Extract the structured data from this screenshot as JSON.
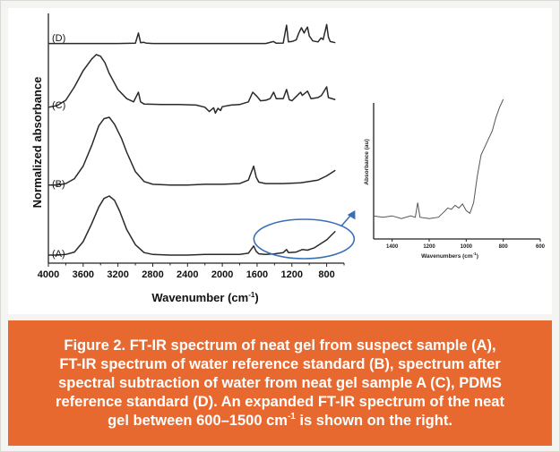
{
  "chart_data": [
    {
      "type": "line",
      "title": "",
      "xlabel": "Wavenumber (cm",
      "xlabel_sup": "-1",
      "xlabel_end": ")",
      "ylabel": "Normalized absorbance",
      "x_reversed": true,
      "xlim": [
        4000,
        600
      ],
      "x_ticks": [
        4000,
        3600,
        3200,
        2800,
        2400,
        2000,
        1600,
        1200,
        800
      ],
      "x_tick_labels": [
        "4000",
        "3600",
        "3200",
        "2800",
        "2400",
        "2000",
        "1600",
        "1200",
        "800"
      ],
      "series": [
        {
          "name": "(A)",
          "points": [
            [
              4000,
              0.03
            ],
            [
              3900,
              0.03
            ],
            [
              3800,
              0.04
            ],
            [
              3700,
              0.08
            ],
            [
              3600,
              0.25
            ],
            [
              3500,
              0.55
            ],
            [
              3420,
              0.82
            ],
            [
              3360,
              0.96
            ],
            [
              3300,
              1.0
            ],
            [
              3240,
              0.93
            ],
            [
              3180,
              0.75
            ],
            [
              3100,
              0.45
            ],
            [
              3000,
              0.2
            ],
            [
              2900,
              0.07
            ],
            [
              2800,
              0.04
            ],
            [
              2600,
              0.03
            ],
            [
              2400,
              0.03
            ],
            [
              2200,
              0.04
            ],
            [
              2000,
              0.04
            ],
            [
              1800,
              0.04
            ],
            [
              1700,
              0.06
            ],
            [
              1640,
              0.18
            ],
            [
              1610,
              0.09
            ],
            [
              1580,
              0.05
            ],
            [
              1500,
              0.04
            ],
            [
              1400,
              0.05
            ],
            [
              1300,
              0.07
            ],
            [
              1261,
              0.12
            ],
            [
              1240,
              0.07
            ],
            [
              1150,
              0.08
            ],
            [
              1080,
              0.12
            ],
            [
              1020,
              0.11
            ],
            [
              940,
              0.15
            ],
            [
              800,
              0.28
            ],
            [
              700,
              0.42
            ]
          ]
        },
        {
          "name": "(B)",
          "points": [
            [
              4000,
              0.03
            ],
            [
              3900,
              0.03
            ],
            [
              3800,
              0.05
            ],
            [
              3700,
              0.12
            ],
            [
              3600,
              0.3
            ],
            [
              3500,
              0.6
            ],
            [
              3420,
              0.88
            ],
            [
              3360,
              0.98
            ],
            [
              3300,
              1.0
            ],
            [
              3240,
              0.9
            ],
            [
              3160,
              0.7
            ],
            [
              3100,
              0.5
            ],
            [
              3000,
              0.22
            ],
            [
              2900,
              0.08
            ],
            [
              2800,
              0.04
            ],
            [
              2600,
              0.03
            ],
            [
              2400,
              0.03
            ],
            [
              2200,
              0.04
            ],
            [
              2000,
              0.04
            ],
            [
              1800,
              0.05
            ],
            [
              1700,
              0.1
            ],
            [
              1640,
              0.3
            ],
            [
              1610,
              0.14
            ],
            [
              1580,
              0.07
            ],
            [
              1500,
              0.05
            ],
            [
              1300,
              0.05
            ],
            [
              1100,
              0.06
            ],
            [
              900,
              0.1
            ],
            [
              800,
              0.16
            ],
            [
              700,
              0.24
            ]
          ]
        },
        {
          "name": "(C)",
          "points": [
            [
              4000,
              0.02
            ],
            [
              3900,
              0.05
            ],
            [
              3800,
              0.15
            ],
            [
              3700,
              0.4
            ],
            [
              3600,
              0.7
            ],
            [
              3500,
              0.92
            ],
            [
              3450,
              1.0
            ],
            [
              3400,
              0.97
            ],
            [
              3350,
              0.85
            ],
            [
              3300,
              0.65
            ],
            [
              3200,
              0.35
            ],
            [
              3100,
              0.18
            ],
            [
              3020,
              0.12
            ],
            [
              2965,
              0.3
            ],
            [
              2940,
              0.12
            ],
            [
              2900,
              0.08
            ],
            [
              2700,
              0.07
            ],
            [
              2500,
              0.07
            ],
            [
              2300,
              0.06
            ],
            [
              2200,
              0.02
            ],
            [
              2150,
              -0.06
            ],
            [
              2100,
              0.01
            ],
            [
              2080,
              -0.09
            ],
            [
              2050,
              0.0
            ],
            [
              2020,
              -0.04
            ],
            [
              2000,
              0.03
            ],
            [
              1900,
              0.06
            ],
            [
              1800,
              0.07
            ],
            [
              1700,
              0.12
            ],
            [
              1650,
              0.3
            ],
            [
              1600,
              0.22
            ],
            [
              1560,
              0.14
            ],
            [
              1500,
              0.15
            ],
            [
              1450,
              0.18
            ],
            [
              1410,
              0.3
            ],
            [
              1380,
              0.18
            ],
            [
              1300,
              0.18
            ],
            [
              1261,
              0.35
            ],
            [
              1230,
              0.16
            ],
            [
              1200,
              0.14
            ],
            [
              1150,
              0.22
            ],
            [
              1100,
              0.3
            ],
            [
              1080,
              0.24
            ],
            [
              1020,
              0.32
            ],
            [
              980,
              0.18
            ],
            [
              900,
              0.2
            ],
            [
              860,
              0.24
            ],
            [
              800,
              0.4
            ],
            [
              780,
              0.2
            ],
            [
              700,
              0.16
            ]
          ]
        },
        {
          "name": "(D)",
          "points": [
            [
              4000,
              0.02
            ],
            [
              3800,
              0.02
            ],
            [
              3600,
              0.02
            ],
            [
              3400,
              0.02
            ],
            [
              3200,
              0.02
            ],
            [
              3000,
              0.03
            ],
            [
              2965,
              0.55
            ],
            [
              2940,
              0.06
            ],
            [
              2905,
              0.08
            ],
            [
              2880,
              0.04
            ],
            [
              2800,
              0.02
            ],
            [
              2400,
              0.02
            ],
            [
              2000,
              0.02
            ],
            [
              1800,
              0.02
            ],
            [
              1600,
              0.02
            ],
            [
              1500,
              0.02
            ],
            [
              1412,
              0.12
            ],
            [
              1380,
              0.03
            ],
            [
              1300,
              0.04
            ],
            [
              1261,
              0.95
            ],
            [
              1240,
              0.1
            ],
            [
              1200,
              0.12
            ],
            [
              1150,
              0.2
            ],
            [
              1120,
              0.55
            ],
            [
              1090,
              0.82
            ],
            [
              1060,
              0.55
            ],
            [
              1040,
              0.72
            ],
            [
              1020,
              0.85
            ],
            [
              1000,
              0.4
            ],
            [
              960,
              0.15
            ],
            [
              900,
              0.1
            ],
            [
              865,
              0.3
            ],
            [
              840,
              0.22
            ],
            [
              800,
              0.98
            ],
            [
              780,
              0.35
            ],
            [
              760,
              0.12
            ],
            [
              700,
              0.06
            ]
          ]
        }
      ]
    },
    {
      "type": "line",
      "title": "",
      "xlabel": "Wavenumbers (cm",
      "xlabel_sup": "-1",
      "xlabel_end": ")",
      "ylabel": "Absorbance (au)",
      "x_reversed": true,
      "xlim": [
        1500,
        600
      ],
      "x_ticks": [
        1400,
        1200,
        1000,
        800,
        600
      ],
      "x_tick_labels": [
        "1400",
        "1200",
        "1000",
        "800",
        "600"
      ],
      "series": [
        {
          "name": "",
          "points": [
            [
              1500,
              0.12
            ],
            [
              1450,
              0.11
            ],
            [
              1400,
              0.12
            ],
            [
              1350,
              0.1
            ],
            [
              1300,
              0.12
            ],
            [
              1275,
              0.11
            ],
            [
              1262,
              0.22
            ],
            [
              1250,
              0.11
            ],
            [
              1200,
              0.1
            ],
            [
              1150,
              0.11
            ],
            [
              1120,
              0.15
            ],
            [
              1100,
              0.18
            ],
            [
              1080,
              0.17
            ],
            [
              1060,
              0.2
            ],
            [
              1040,
              0.18
            ],
            [
              1020,
              0.21
            ],
            [
              1000,
              0.16
            ],
            [
              980,
              0.14
            ],
            [
              960,
              0.22
            ],
            [
              940,
              0.42
            ],
            [
              920,
              0.58
            ],
            [
              900,
              0.64
            ],
            [
              880,
              0.7
            ],
            [
              860,
              0.76
            ],
            [
              840,
              0.86
            ],
            [
              820,
              0.94
            ],
            [
              800,
              1.0
            ]
          ]
        }
      ]
    }
  ],
  "caption": {
    "line1": "Figure 2. FT-IR spectrum of neat gel from suspect sample (A),",
    "line2": "FT-IR spectrum of water reference standard (B), spectrum after",
    "line3": "spectral subtraction of water from neat gel sample A (C), PDMS",
    "line4a": "reference standard (D). An expanded FT-IR spectrum of the neat",
    "line5a": "gel between 600–1500 cm",
    "line5sup": "-1",
    "line5b": " is shown on the right."
  },
  "colors": {
    "caption_background": "#e8692f",
    "caption_text": "#ffffff",
    "highlight_ellipse": "#3a6fb8"
  }
}
